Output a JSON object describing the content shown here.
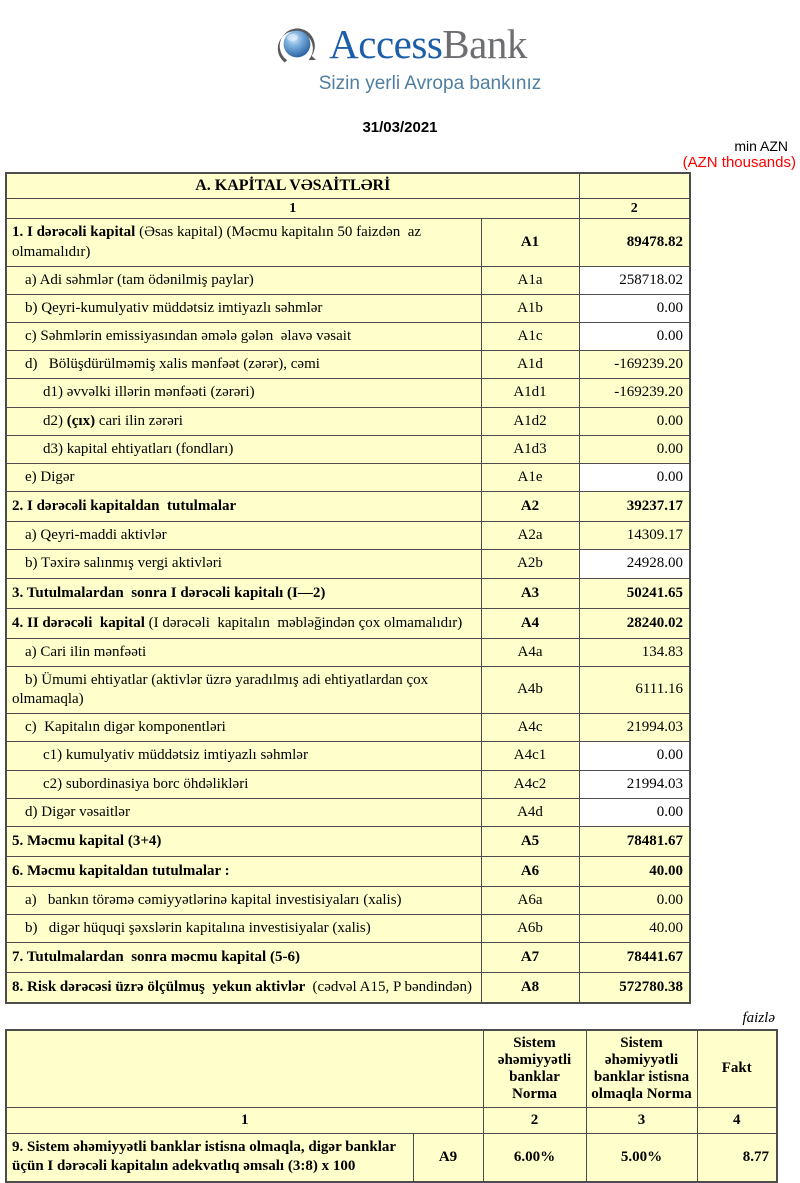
{
  "header": {
    "brand_access": "Access",
    "brand_bank": "Bank",
    "tagline": "Sizin yerli Avropa bankınız",
    "date": "31/03/2021",
    "unit_note": "min AZN",
    "unit_note_red": "(AZN thousands)"
  },
  "colors": {
    "table_bg": "#FFFFCC",
    "border": "#4d4d4d",
    "brand_blue": "#1C5EA9",
    "brand_gray": "#6D6E71",
    "tagline_blue": "#4F7FA0",
    "note_red": "#FF0000"
  },
  "capital_table": {
    "title": "A. KAPİTAL VƏSAİTLƏRİ",
    "numbering": [
      "1",
      "2"
    ],
    "rows": [
      {
        "label": [
          {
            "t": "1. I dərəcəli kapital ",
            "b": true
          },
          {
            "t": "(Əsas kapital) (Məcmu kapitalın 50 faizdən  az olmamalıdır)",
            "b": false
          }
        ],
        "code": "A1",
        "value": "89478.82",
        "emph": true,
        "white": false,
        "indent": 0
      },
      {
        "label": [
          {
            "t": "a) Adi səhmlər (tam ödənilmiş paylar)",
            "b": false
          }
        ],
        "code": "A1a",
        "value": "258718.02",
        "emph": false,
        "white": true,
        "indent": 1
      },
      {
        "label": [
          {
            "t": "b) Qeyri-kumulyativ müddətsiz imtiyazlı səhmlər",
            "b": false
          }
        ],
        "code": "A1b",
        "value": "0.00",
        "emph": false,
        "white": true,
        "indent": 1
      },
      {
        "label": [
          {
            "t": "c) Səhmlərin emissiyasından əmələ gələn  əlavə vəsait",
            "b": false
          }
        ],
        "code": "A1c",
        "value": "0.00",
        "emph": false,
        "white": true,
        "indent": 1
      },
      {
        "label": [
          {
            "t": "d)   Bölüşdürülməmiş xalis mənfəət (zərər), cəmi",
            "b": false
          }
        ],
        "code": "A1d",
        "value": "-169239.20",
        "emph": false,
        "white": false,
        "indent": 1
      },
      {
        "label": [
          {
            "t": "d1) əvvəlki illərin mənfəəti (zərəri)",
            "b": false
          }
        ],
        "code": "A1d1",
        "value": "-169239.20",
        "emph": false,
        "white": false,
        "indent": 2
      },
      {
        "label": [
          {
            "t": "d2) ",
            "b": false
          },
          {
            "t": "(çıx)",
            "b": true
          },
          {
            "t": " cari ilin zərəri",
            "b": false
          }
        ],
        "code": "A1d2",
        "value": "0.00",
        "emph": false,
        "white": false,
        "indent": 2
      },
      {
        "label": [
          {
            "t": "d3) kapital ehtiyatları (fondları)",
            "b": false
          }
        ],
        "code": "A1d3",
        "value": "0.00",
        "emph": false,
        "white": false,
        "indent": 2
      },
      {
        "label": [
          {
            "t": "e) Digər",
            "b": false
          }
        ],
        "code": "A1e",
        "value": "0.00",
        "emph": false,
        "white": true,
        "indent": 1
      },
      {
        "label": [
          {
            "t": "2. I dərəcəli kapitaldan  tutulmalar",
            "b": true
          }
        ],
        "code": "A2",
        "value": "39237.17",
        "emph": true,
        "white": false,
        "indent": 0
      },
      {
        "label": [
          {
            "t": "a) Qeyri-maddi aktivlər",
            "b": false
          }
        ],
        "code": "A2a",
        "value": "14309.17",
        "emph": false,
        "white": false,
        "indent": 1
      },
      {
        "label": [
          {
            "t": "b) Təxirə salınmış vergi aktivləri",
            "b": false
          }
        ],
        "code": "A2b",
        "value": "24928.00",
        "emph": false,
        "white": true,
        "indent": 1
      },
      {
        "label": [
          {
            "t": "3. Tutulmalardan  sonra I dərəcəli kapitalı (I—2)",
            "b": true
          }
        ],
        "code": "A3",
        "value": "50241.65",
        "emph": true,
        "white": false,
        "indent": 0
      },
      {
        "label": [
          {
            "t": "4. II dərəcəli  kapital ",
            "b": true
          },
          {
            "t": "(I dərəcəli  kapitalın  məbləğindən çox olmamalıdır)",
            "b": false
          }
        ],
        "code": "A4",
        "value": "28240.02",
        "emph": true,
        "white": false,
        "indent": 0
      },
      {
        "label": [
          {
            "t": "a) Cari ilin mənfəəti",
            "b": false
          }
        ],
        "code": "A4a",
        "value": "134.83",
        "emph": false,
        "white": false,
        "indent": 1
      },
      {
        "label": [
          {
            "t": "b) Ümumi ehtiyatlar (aktivlər üzrə yaradılmış adi ehtiyatlardan çox olmamaqla)",
            "b": false
          }
        ],
        "code": "A4b",
        "value": "6111.16",
        "emph": false,
        "white": false,
        "indent": 1
      },
      {
        "label": [
          {
            "t": "c)  Kapitalın digər komponentləri",
            "b": false
          }
        ],
        "code": "A4c",
        "value": "21994.03",
        "emph": false,
        "white": false,
        "indent": 1
      },
      {
        "label": [
          {
            "t": "c1) kumulyativ müddətsiz imtiyazlı səhmlər",
            "b": false
          }
        ],
        "code": "A4c1",
        "value": "0.00",
        "emph": false,
        "white": true,
        "indent": 2
      },
      {
        "label": [
          {
            "t": "c2) subordinasiya borc öhdəlikləri",
            "b": false
          }
        ],
        "code": "A4c2",
        "value": "21994.03",
        "emph": false,
        "white": true,
        "indent": 2
      },
      {
        "label": [
          {
            "t": "d) Digər vəsaitlər",
            "b": false
          }
        ],
        "code": "A4d",
        "value": "0.00",
        "emph": false,
        "white": true,
        "indent": 1
      },
      {
        "label": [
          {
            "t": "5. Məcmu kapital (3+4)",
            "b": true
          }
        ],
        "code": "A5",
        "value": "78481.67",
        "emph": true,
        "white": false,
        "indent": 0
      },
      {
        "label": [
          {
            "t": "6. Məcmu kapitaldan tutulmalar :",
            "b": true
          }
        ],
        "code": "A6",
        "value": "40.00",
        "emph": true,
        "white": false,
        "indent": 0
      },
      {
        "label": [
          {
            "t": "a)   bankın törəmə cəmiyyətlərinə kapital investisiyaları (xalis)",
            "b": false
          }
        ],
        "code": "A6a",
        "value": "0.00",
        "emph": false,
        "white": false,
        "indent": 1
      },
      {
        "label": [
          {
            "t": "b)   digər hüquqi şəxslərin kapitalına investisiyalar (xalis)",
            "b": false
          }
        ],
        "code": "A6b",
        "value": "40.00",
        "emph": false,
        "white": false,
        "indent": 1
      },
      {
        "label": [
          {
            "t": "7. Tutulmalardan  sonra məcmu kapital (5-6)",
            "b": true
          }
        ],
        "code": "A7",
        "value": "78441.67",
        "emph": true,
        "white": false,
        "indent": 0
      },
      {
        "label": [
          {
            "t": "8. Risk dərəcəsi üzrə ölçülmuş  yekun aktivlər  ",
            "b": true
          },
          {
            "t": "(cədvəl A15, P bəndindən)",
            "b": false
          }
        ],
        "code": "A8",
        "value": "572780.38",
        "emph": true,
        "white": false,
        "indent": 0
      }
    ]
  },
  "ratio_table": {
    "percent_note": "faizlə",
    "headers": [
      "Sistem əhəmiyyətli banklar Norma",
      "Sistem əhəmiyyətli banklar istisna olmaqla Norma",
      "Fakt"
    ],
    "numbering": [
      "1",
      "2",
      "3",
      "4"
    ],
    "row": {
      "label": "9. Sistem əhəmiyyətli banklar istisna olmaqla, digər banklar üçün I dərəcəli  kapitalın  adekvatlıq əmsalı (3:8) x 100",
      "code": "A9",
      "sistem_norma": "6.00%",
      "istisna_norma": "5.00%",
      "fakt": "8.77"
    }
  }
}
